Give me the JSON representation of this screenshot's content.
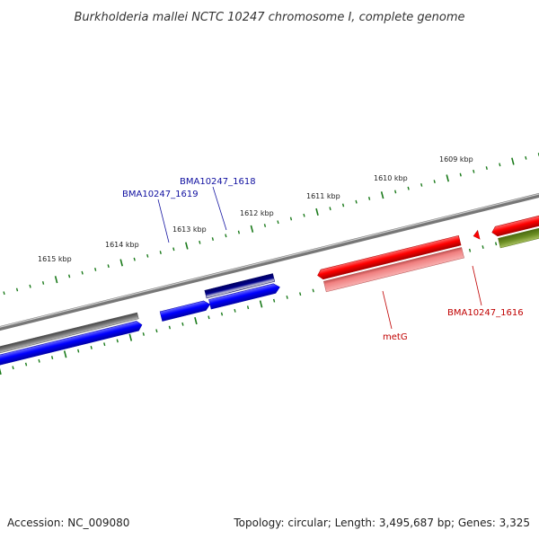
{
  "title": "Burkholderia mallei NCTC 10247 chromosome I, complete genome",
  "footer": {
    "accession": "Accession: NC_009080",
    "summary": "Topology: circular; Length: 3,495,687 bp; Genes: 3,325"
  },
  "scale_labels": [
    "1609 kbp",
    "1610 kbp",
    "1611 kbp",
    "1612 kbp",
    "1613 kbp",
    "1614 kbp",
    "1615 kbp"
  ],
  "gene_labels": [
    {
      "text": "BMA10247_1618",
      "color": "#1010a0"
    },
    {
      "text": "BMA10247_1619",
      "color": "#1010a0"
    },
    {
      "text": "metG",
      "color": "#c00000"
    },
    {
      "text": "BMA10247_1616",
      "color": "#c00000"
    }
  ],
  "colors": {
    "backbone": "#888888",
    "tick": "#1a7a1a",
    "forward_strand": "#0000ff",
    "reverse_strand": "#ff0000",
    "highlight_dark": "#00008b",
    "pseudo_gray": "#666666",
    "pale_red": "#f08080",
    "olive": "#6b8e23",
    "pale_yellow": "#eeee99"
  }
}
